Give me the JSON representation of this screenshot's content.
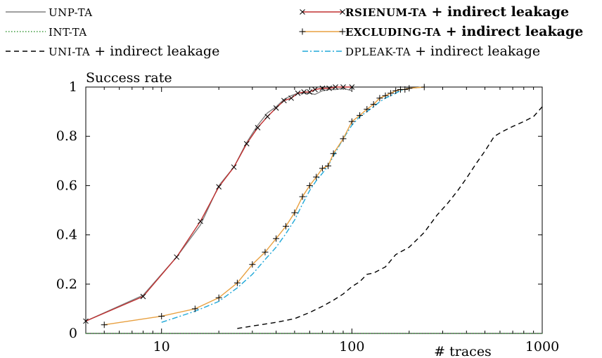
{
  "chart_data": {
    "type": "line",
    "xlabel": "# traces",
    "ylabel": "Success rate",
    "x_scale": "log",
    "xlim": [
      4,
      1000
    ],
    "ylim": [
      0,
      1
    ],
    "x_ticks": [
      10,
      100,
      1000
    ],
    "x_tick_labels": [
      "10",
      "100",
      "1000"
    ],
    "y_ticks": [
      0,
      0.2,
      0.4,
      0.6,
      0.8,
      1
    ],
    "y_tick_labels": [
      "0",
      "0.2",
      "0.4",
      "0.6",
      "0.8",
      "1"
    ],
    "grid": false,
    "legend_position": "top",
    "series": [
      {
        "name": "UNP-TA",
        "color": "#808080",
        "dash": "solid",
        "marker": "none",
        "legend_parts": [
          {
            "text": "UNP-TA",
            "style": "sc"
          }
        ],
        "x": [
          4,
          8,
          12,
          16,
          20,
          24,
          28,
          32,
          36,
          40,
          44,
          48,
          52,
          56,
          60,
          64,
          70,
          76,
          82,
          90,
          100
        ],
        "y": [
          0.05,
          0.155,
          0.31,
          0.44,
          0.6,
          0.675,
          0.775,
          0.845,
          0.895,
          0.92,
          0.95,
          0.965,
          0.975,
          0.975,
          0.975,
          0.97,
          0.985,
          0.99,
          0.99,
          0.995,
          0.985
        ]
      },
      {
        "name": "INT-TA",
        "color": "#3a9a3a",
        "dash": "dotted",
        "marker": "none",
        "legend_parts": [
          {
            "text": "INT-TA",
            "style": "sc"
          }
        ],
        "x": [
          4,
          10,
          20,
          50,
          100,
          200,
          500,
          1000
        ],
        "y": [
          0,
          0,
          0,
          0,
          0,
          0,
          0,
          0
        ]
      },
      {
        "name": "UNI-TA + indirect leakage",
        "color": "#000000",
        "dash": "dashed",
        "marker": "none",
        "legend_parts": [
          {
            "text": "UNI-TA",
            "style": "sc"
          },
          {
            "text": " + indirect leakage",
            "style": "plain"
          }
        ],
        "x": [
          25,
          30,
          40,
          50,
          60,
          70,
          80,
          90,
          100,
          110,
          120,
          130,
          150,
          170,
          200,
          240,
          280,
          320,
          360,
          400,
          450,
          500,
          560,
          620,
          700,
          800,
          900,
          1000
        ],
        "y": [
          0.02,
          0.03,
          0.045,
          0.06,
          0.085,
          0.11,
          0.135,
          0.16,
          0.19,
          0.21,
          0.24,
          0.245,
          0.27,
          0.32,
          0.35,
          0.41,
          0.48,
          0.53,
          0.58,
          0.63,
          0.69,
          0.74,
          0.8,
          0.82,
          0.84,
          0.86,
          0.88,
          0.92
        ]
      },
      {
        "name": "RSIENUM-TA + indirect leakage",
        "color": "#c03030",
        "dash": "solid",
        "marker": "x",
        "legend_parts": [
          {
            "text": "RSIENUM-TA",
            "style": "sc-bold"
          },
          {
            "text": " + indirect leakage",
            "style": "bold"
          }
        ],
        "x": [
          4,
          8,
          12,
          16,
          20,
          24,
          28,
          32,
          36,
          40,
          44,
          48,
          52,
          56,
          60,
          64,
          70,
          76,
          82,
          90,
          100
        ],
        "y": [
          0.05,
          0.15,
          0.31,
          0.455,
          0.595,
          0.675,
          0.77,
          0.835,
          0.88,
          0.915,
          0.945,
          0.955,
          0.975,
          0.98,
          0.98,
          0.99,
          0.995,
          0.995,
          1.0,
          1.0,
          1.0
        ]
      },
      {
        "name": "EXCLUDING-TA + indirect leakage",
        "color": "#e8a040",
        "dash": "solid",
        "marker": "+",
        "legend_parts": [
          {
            "text": "EXCLUDING-TA",
            "style": "sc-bold"
          },
          {
            "text": " + indirect leakage",
            "style": "bold"
          }
        ],
        "x": [
          5,
          10,
          15,
          20,
          25,
          30,
          35,
          40,
          45,
          50,
          55,
          60,
          65,
          70,
          75,
          80,
          90,
          100,
          110,
          120,
          130,
          140,
          150,
          160,
          170,
          180,
          190,
          200,
          240
        ],
        "y": [
          0.035,
          0.07,
          0.1,
          0.145,
          0.205,
          0.28,
          0.33,
          0.385,
          0.435,
          0.49,
          0.555,
          0.6,
          0.635,
          0.67,
          0.68,
          0.73,
          0.79,
          0.86,
          0.885,
          0.91,
          0.93,
          0.955,
          0.965,
          0.975,
          0.985,
          0.99,
          0.99,
          0.995,
          1.0
        ]
      },
      {
        "name": "DPLEAK-TA + indirect leakage",
        "color": "#20a8d8",
        "dash": "dashdot",
        "marker": "none",
        "legend_parts": [
          {
            "text": "DPLEAK-TA",
            "style": "sc"
          },
          {
            "text": " + indirect leakage",
            "style": "plain"
          }
        ],
        "x": [
          10,
          15,
          20,
          25,
          30,
          35,
          40,
          45,
          50,
          55,
          60,
          65,
          70,
          75,
          80,
          90,
          100,
          110,
          120,
          130,
          140,
          150,
          160,
          170,
          180,
          190,
          200,
          240
        ],
        "y": [
          0.045,
          0.09,
          0.13,
          0.185,
          0.24,
          0.3,
          0.35,
          0.405,
          0.46,
          0.525,
          0.58,
          0.62,
          0.65,
          0.68,
          0.72,
          0.79,
          0.845,
          0.88,
          0.9,
          0.92,
          0.94,
          0.955,
          0.965,
          0.975,
          0.985,
          0.99,
          0.995,
          1.0
        ]
      }
    ]
  }
}
